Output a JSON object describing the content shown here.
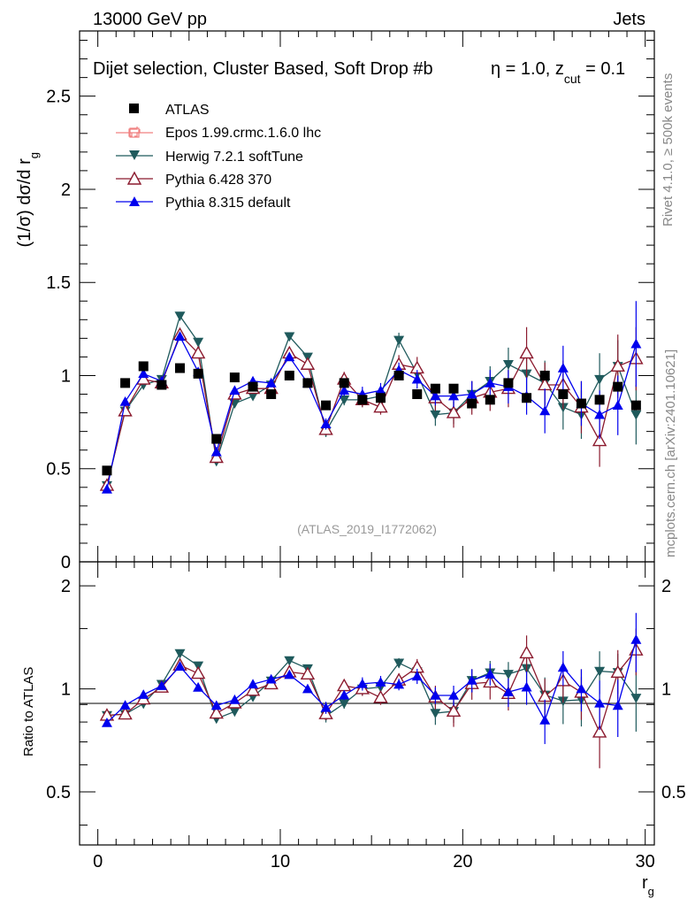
{
  "header": {
    "left": "13000 GeV pp",
    "right": "Jets"
  },
  "side_text": {
    "rivet_prefix": "Rivet 4.1.0, ",
    "rivet_ge": "≥",
    "rivet_suffix": " 500k events",
    "mcplots": "mcplots.cern.ch [arXiv:2401.10621]"
  },
  "chart_data": {
    "type": "scatter",
    "title": {
      "main": "Dijet selection, Cluster Based, Soft Drop #b",
      "eta": "η = 1.0, z",
      "sub": "cut",
      "tail": " = 0.1"
    },
    "analysis_label": "(ATLAS_2019_I1772062)",
    "xlabel": {
      "base": "r",
      "sub": "g"
    },
    "ylabel": {
      "base": "(1/σ) dσ/d r",
      "sub": "g"
    },
    "ratio_ylabel": "Ratio to ATLAS",
    "xlim": [
      -1.0,
      30.5
    ],
    "ylim": [
      0,
      2.85
    ],
    "ratio_ylim": [
      0.35,
      2.35
    ],
    "x_ticks": [
      {
        "v": 0,
        "label": "0"
      },
      {
        "v": 10,
        "label": "10"
      },
      {
        "v": 20,
        "label": "20"
      },
      {
        "v": 30,
        "label": "30"
      }
    ],
    "y_ticks": [
      {
        "v": 0,
        "label": "0"
      },
      {
        "v": 0.5,
        "label": "0.5"
      },
      {
        "v": 1,
        "label": "1"
      },
      {
        "v": 1.5,
        "label": "1.5"
      },
      {
        "v": 2,
        "label": "2"
      },
      {
        "v": 2.5,
        "label": "2.5"
      }
    ],
    "ratio_ticks": [
      {
        "v": 0.5,
        "label": "0.5"
      },
      {
        "v": 1,
        "label": "1"
      },
      {
        "v": 2,
        "label": "2"
      }
    ],
    "x": [
      0.5,
      1.5,
      2.5,
      3.5,
      4.5,
      5.5,
      6.5,
      7.5,
      8.5,
      9.5,
      10.5,
      11.5,
      12.5,
      13.5,
      14.5,
      15.5,
      16.5,
      17.5,
      18.5,
      19.5,
      20.5,
      21.5,
      22.5,
      23.5,
      24.5,
      25.5,
      26.5,
      27.5,
      28.5,
      29.5
    ],
    "data": {
      "name": "ATLAS",
      "values": [
        0.49,
        0.96,
        1.05,
        0.95,
        1.04,
        1.01,
        0.66,
        0.99,
        0.94,
        0.9,
        1.0,
        0.96,
        0.84,
        0.96,
        0.87,
        0.88,
        1.0,
        0.9,
        0.93,
        0.93,
        0.85,
        0.87,
        0.96,
        0.88,
        1.0,
        0.9,
        0.85,
        0.87,
        0.94,
        0.84
      ]
    },
    "series": [
      {
        "name": "Epos 1.99.crmc.1.6.0 lhc",
        "color": "#f08080",
        "marker": "open-cross",
        "values": [],
        "errors": []
      },
      {
        "name": "Herwig 7.2.1 softTune",
        "color": "#1f5a5c",
        "marker": "down-triangle",
        "values": [
          0.41,
          0.81,
          0.95,
          0.98,
          1.32,
          1.18,
          0.54,
          0.85,
          0.89,
          0.95,
          1.21,
          1.1,
          0.7,
          0.87,
          0.87,
          0.89,
          1.19,
          1.01,
          0.79,
          0.8,
          0.9,
          0.97,
          1.06,
          1.01,
          0.96,
          0.83,
          0.79,
          0.98,
          1.05,
          0.79
        ],
        "errors": [
          0.01,
          0.01,
          0.01,
          0.01,
          0.02,
          0.02,
          0.01,
          0.01,
          0.02,
          0.02,
          0.02,
          0.02,
          0.03,
          0.03,
          0.04,
          0.04,
          0.04,
          0.05,
          0.06,
          0.06,
          0.07,
          0.08,
          0.09,
          0.11,
          0.12,
          0.12,
          0.13,
          0.14,
          0.14,
          0.16
        ]
      },
      {
        "name": "Pythia 6.428 370",
        "color": "#8b1a2e",
        "marker": "open-triangle",
        "values": [
          0.41,
          0.81,
          0.98,
          0.96,
          1.22,
          1.12,
          0.56,
          0.9,
          0.93,
          0.93,
          1.12,
          1.06,
          0.71,
          0.98,
          0.87,
          0.83,
          1.06,
          1.04,
          0.88,
          0.8,
          0.88,
          0.91,
          0.93,
          1.12,
          0.95,
          0.95,
          0.83,
          0.65,
          1.05,
          1.09
        ],
        "errors": [
          0.01,
          0.01,
          0.01,
          0.01,
          0.02,
          0.02,
          0.01,
          0.02,
          0.02,
          0.02,
          0.02,
          0.03,
          0.03,
          0.04,
          0.04,
          0.04,
          0.05,
          0.06,
          0.07,
          0.08,
          0.09,
          0.1,
          0.1,
          0.14,
          0.12,
          0.13,
          0.14,
          0.14,
          0.17,
          0.17
        ]
      },
      {
        "name": "Pythia 8.315 default",
        "color": "#0000ee",
        "marker": "triangle",
        "values": [
          0.39,
          0.86,
          1.01,
          0.97,
          1.21,
          1.02,
          0.59,
          0.92,
          0.97,
          0.96,
          1.1,
          0.96,
          0.74,
          0.92,
          0.9,
          0.92,
          1.03,
          0.98,
          0.89,
          0.89,
          0.9,
          0.96,
          0.94,
          0.89,
          0.81,
          1.04,
          0.85,
          0.79,
          0.84,
          1.17
        ],
        "errors": [
          0.01,
          0.01,
          0.01,
          0.01,
          0.02,
          0.02,
          0.01,
          0.01,
          0.02,
          0.02,
          0.02,
          0.02,
          0.03,
          0.03,
          0.04,
          0.04,
          0.04,
          0.05,
          0.05,
          0.06,
          0.07,
          0.07,
          0.09,
          0.1,
          0.12,
          0.12,
          0.12,
          0.13,
          0.16,
          0.23
        ]
      }
    ]
  }
}
